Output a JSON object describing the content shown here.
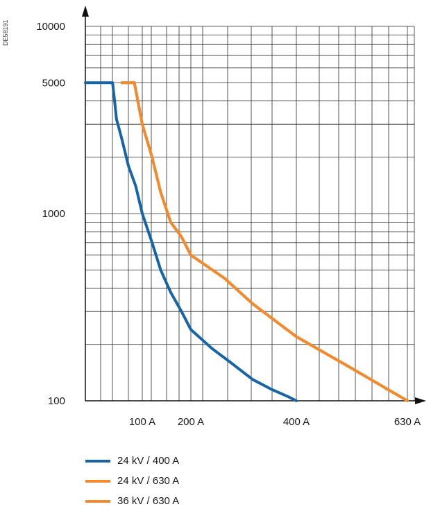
{
  "document_code": "DE58191",
  "chart_data": {
    "type": "line",
    "title": "",
    "xlabel": "",
    "ylabel": "",
    "y_scale": "log",
    "x_scale": "log",
    "ylim": [
      100,
      10000
    ],
    "x_tick_labels": [
      "100 A",
      "200 A",
      "400 A",
      "630 A"
    ],
    "x_tick_values": [
      100,
      200,
      400,
      630
    ],
    "y_tick_labels": [
      "100",
      "1000",
      "5000",
      "10000"
    ],
    "y_tick_values": [
      100,
      1000,
      5000,
      10000
    ],
    "grid": true,
    "legend_position": "bottom-left",
    "colors": {
      "series_blue": "#1565a8",
      "series_orange": "#f28a2e",
      "grid": "#2b2b2b",
      "axis": "#111111"
    },
    "series": [
      {
        "name": "24 kV / 400 A",
        "color": "#1565a8",
        "x": [
          48,
          62,
          64,
          66,
          72,
          80,
          90,
          100,
          115,
          130,
          150,
          175,
          200,
          230,
          260,
          300,
          340,
          380,
          400
        ],
        "y": [
          5000,
          5000,
          4000,
          3200,
          2500,
          1800,
          1400,
          1000,
          700,
          500,
          380,
          300,
          240,
          190,
          160,
          130,
          115,
          105,
          100
        ]
      },
      {
        "name": "24 kV / 630 A",
        "color": "#f28a2e",
        "x": [
          72,
          88,
          92,
          100,
          115,
          130,
          150,
          175,
          200,
          250,
          300,
          400,
          500,
          630
        ],
        "y": [
          5000,
          5000,
          4200,
          3000,
          2000,
          1300,
          900,
          750,
          600,
          450,
          330,
          220,
          150,
          100
        ]
      },
      {
        "name": "36 kV / 630 A",
        "color": "#f28a2e",
        "x": [
          72,
          88,
          92,
          100,
          115,
          130,
          150,
          175,
          200,
          250,
          300,
          400,
          500,
          630
        ],
        "y": [
          5000,
          5000,
          4200,
          3000,
          2000,
          1300,
          900,
          750,
          600,
          450,
          330,
          220,
          150,
          100
        ]
      }
    ]
  }
}
